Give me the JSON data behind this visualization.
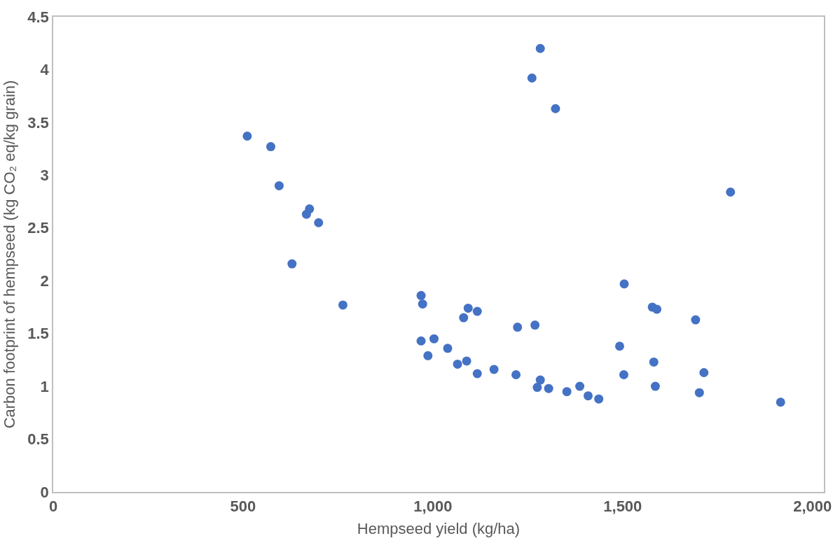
{
  "chart_data": {
    "type": "scatter",
    "xlabel": "Hempseed yield (kg/ha)",
    "ylabel": "Carbon footprint of hempseed (kg CO₂ eq/kg grain)",
    "xlim": [
      0,
      2030
    ],
    "xticks": [
      0,
      {
        "value": 500,
        "label": "500"
      },
      {
        "value": 1000,
        "label": "1,000"
      },
      {
        "value": 1500,
        "label": "1,500"
      },
      {
        "value": 2000,
        "label": "2,000"
      }
    ],
    "ylim": [
      0,
      4.5
    ],
    "yticks": [
      0,
      0.5,
      1,
      1.5,
      2,
      2.5,
      3,
      3.5,
      4,
      4.5
    ],
    "grid": false,
    "marker": "circle",
    "series": [
      {
        "color": "#4472c4",
        "x": [
          511,
          573,
          595,
          675,
          667,
          699,
          629,
          763,
          969,
          973,
          969,
          987,
          1003,
          1039,
          1065,
          1089,
          1081,
          1093,
          1117,
          1117,
          1161,
          1219,
          1223,
          1261,
          1283,
          1269,
          1275,
          1283,
          1305,
          1323,
          1353,
          1387,
          1409,
          1437,
          1492,
          1504,
          1503,
          1578,
          1590,
          1582,
          1586,
          1692,
          1702,
          1714,
          1784,
          1916
        ],
        "values": [
          3.37,
          3.27,
          2.9,
          2.68,
          2.63,
          2.55,
          2.16,
          1.77,
          1.86,
          1.78,
          1.43,
          1.29,
          1.45,
          1.36,
          1.21,
          1.24,
          1.65,
          1.74,
          1.71,
          1.12,
          1.16,
          1.11,
          1.56,
          3.92,
          4.2,
          1.58,
          0.99,
          1.06,
          0.98,
          3.63,
          0.95,
          1.0,
          0.91,
          0.88,
          1.38,
          1.97,
          1.11,
          1.75,
          1.73,
          1.23,
          1.0,
          1.63,
          0.94,
          1.13,
          2.84,
          0.85
        ]
      }
    ]
  }
}
